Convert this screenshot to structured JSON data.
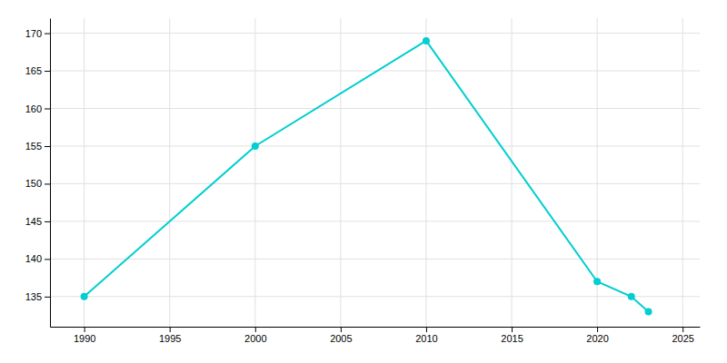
{
  "chart_data": {
    "type": "line",
    "x": [
      1990,
      2000,
      2010,
      2020,
      2022,
      2023
    ],
    "values": [
      135,
      155,
      169,
      137,
      135,
      133
    ],
    "color": "#00CED1",
    "marker": "circle",
    "xlim": [
      1988,
      2026
    ],
    "ylim": [
      131,
      172
    ],
    "xticks": [
      1990,
      1995,
      2000,
      2005,
      2010,
      2015,
      2020,
      2025
    ],
    "yticks": [
      135,
      140,
      145,
      150,
      155,
      160,
      165,
      170
    ],
    "grid": true
  }
}
